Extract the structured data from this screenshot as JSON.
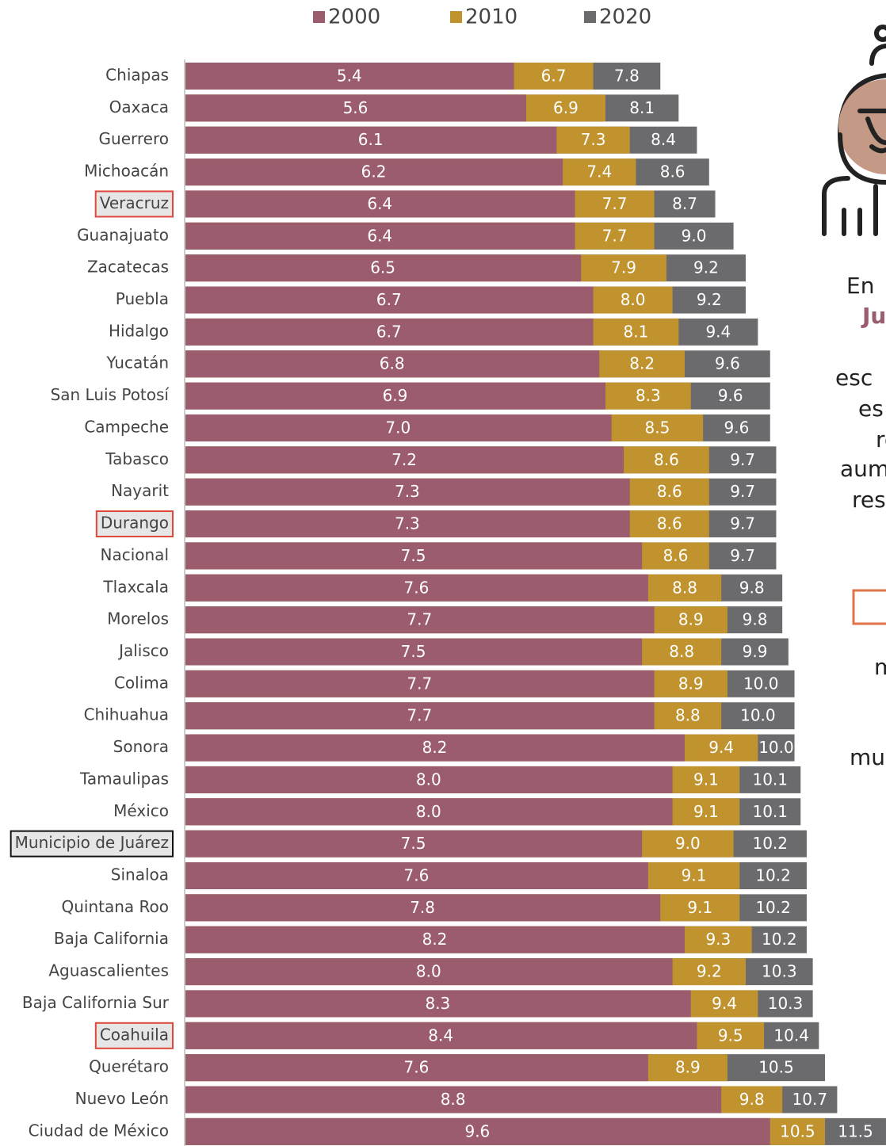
{
  "chart_data": {
    "type": "overlap-bar-horizontal",
    "categories": [
      "Chiapas",
      "Oaxaca",
      "Guerrero",
      "Michoacán",
      "Veracruz",
      "Guanajuato",
      "Zacatecas",
      "Puebla",
      "Hidalgo",
      "Yucatán",
      "San Luis Potosí",
      "Campeche",
      "Tabasco",
      "Nayarit",
      "Durango",
      "Nacional",
      "Tlaxcala",
      "Morelos",
      "Jalisco",
      "Colima",
      "Chihuahua",
      "Sonora",
      "Tamaulipas",
      "México",
      "Municipio de Juárez",
      "Sinaloa",
      "Quintana Roo",
      "Baja California",
      "Aguascalientes",
      "Baja California Sur",
      "Coahuila",
      "Querétaro",
      "Nuevo León",
      "Ciudad de México"
    ],
    "series": [
      {
        "name": "2000",
        "color": "#9b5c6e",
        "values": [
          5.4,
          5.6,
          6.1,
          6.2,
          6.4,
          6.4,
          6.5,
          6.7,
          6.7,
          6.8,
          6.9,
          7.0,
          7.2,
          7.3,
          7.3,
          7.5,
          7.6,
          7.7,
          7.5,
          7.7,
          7.7,
          8.2,
          8.0,
          8.0,
          7.5,
          7.6,
          7.8,
          8.2,
          8.0,
          8.3,
          8.4,
          7.6,
          8.8,
          9.6
        ],
        "value_labels": [
          "5.4",
          "5.6",
          "6.1",
          "6.2",
          "6.4",
          "6.4",
          "6.5",
          "6.7",
          "6.7",
          "6.8",
          "6.9",
          "7.0",
          "7.2",
          "7.3",
          "7.3",
          "7.5",
          "7.6",
          "7.7",
          "7.5",
          "7.7",
          "7.7",
          "8.2",
          "8.0",
          "8.0",
          "7.5",
          "7.6",
          "7.8",
          "8.2",
          "8.0",
          "8.3",
          "8.4",
          "7.6",
          "8.8",
          "9.6"
        ]
      },
      {
        "name": "2010",
        "color": "#c0932f",
        "values": [
          6.7,
          6.9,
          7.3,
          7.4,
          7.7,
          7.7,
          7.9,
          8.0,
          8.1,
          8.2,
          8.3,
          8.5,
          8.6,
          8.6,
          8.6,
          8.6,
          8.8,
          8.9,
          8.8,
          8.9,
          8.8,
          9.4,
          9.1,
          9.1,
          9.0,
          9.1,
          9.1,
          9.3,
          9.2,
          9.4,
          9.5,
          8.9,
          9.8,
          10.5
        ],
        "value_labels": [
          "6.7",
          "6.9",
          "7.3",
          "7.4",
          "7.7",
          "7.7",
          "7.9",
          "8.0",
          "8.1",
          "8.2",
          "8.3",
          "8.5",
          "8.6",
          "8.6",
          "8.6",
          "8.6",
          "8.8",
          "8.9",
          "8.8",
          "8.9",
          "8.8",
          "9.4",
          "9.1",
          "9.1",
          "9.0",
          "9.1",
          "9.1",
          "9.3",
          "9.2",
          "9.4",
          "9.5",
          "8.9",
          "9.8",
          "10.5"
        ]
      },
      {
        "name": "2020",
        "color": "#6b6b6e",
        "values": [
          7.8,
          8.1,
          8.4,
          8.6,
          8.7,
          9.0,
          9.2,
          9.2,
          9.4,
          9.6,
          9.6,
          9.6,
          9.7,
          9.7,
          9.7,
          9.7,
          9.8,
          9.8,
          9.9,
          10.0,
          10.0,
          10.0,
          10.1,
          10.1,
          10.2,
          10.2,
          10.2,
          10.2,
          10.3,
          10.3,
          10.4,
          10.5,
          10.7,
          11.5
        ],
        "value_labels": [
          "7.8",
          "8.1",
          "8.4",
          "8.6",
          "8.7",
          "9.0",
          "9.2",
          "9.2",
          "9.4",
          "9.6",
          "9.6",
          "9.6",
          "9.7",
          "9.7",
          "9.7",
          "9.7",
          "9.8",
          "9.8",
          "9.9",
          "10.0",
          "10.0",
          "10.0",
          "10.1",
          "10.1",
          "10.2",
          "10.2",
          "10.2",
          "10.2",
          "10.3",
          "10.3",
          "10.4",
          "10.5",
          "10.7",
          "11.5"
        ]
      }
    ],
    "xlim": [
      0,
      11.6
    ],
    "legend": "top",
    "highlights": [
      {
        "category": "Veracruz",
        "color": "#e0463a"
      },
      {
        "category": "Durango",
        "color": "#e0463a"
      },
      {
        "category": "Municipio de Juárez",
        "color": "#111111"
      },
      {
        "category": "Coahuila",
        "color": "#e0463a"
      }
    ]
  },
  "side_text": [
    "En",
    "Ju",
    "esc",
    "es",
    "re",
    "aum",
    "res",
    "m",
    "mu"
  ]
}
